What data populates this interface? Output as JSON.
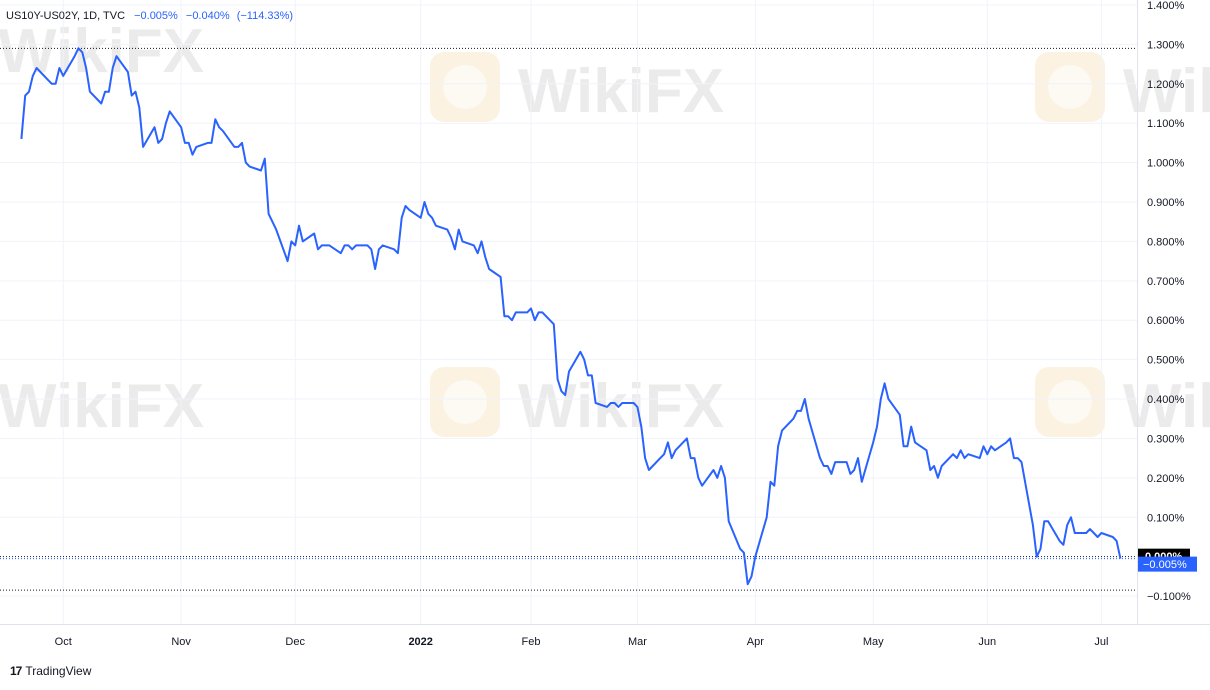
{
  "legend": {
    "symbol": "US10Y-US02Y, 1D, TVC",
    "change": "−0.005%",
    "change_abs": "−0.040%",
    "change_pct": "(−114.33%)"
  },
  "branding": {
    "name": "TradingView",
    "logo_icon": "tradingview-logo-icon",
    "watermark_text": "WikiFX"
  },
  "colors": {
    "line": "#2962ff",
    "last_label_bg": "#2962ff",
    "zero_label_bg": "#000000",
    "grid": "#f0f3fa",
    "text": "#131722"
  },
  "chart_data": {
    "type": "line",
    "title": "",
    "xlabel": "",
    "ylabel": "",
    "ylim": [
      -0.11,
      1.4
    ],
    "y_ticks": [
      -0.1,
      0.1,
      0.2,
      0.3,
      0.4,
      0.5,
      0.6,
      0.7,
      0.8,
      0.9,
      1.0,
      1.1,
      1.2,
      1.3,
      1.4
    ],
    "y_tick_labels": [
      "−0.100%",
      "0.100%",
      "0.200%",
      "0.300%",
      "0.400%",
      "0.500%",
      "0.600%",
      "0.700%",
      "0.800%",
      "0.900%",
      "1.000%",
      "1.100%",
      "1.200%",
      "1.300%",
      "1.400%"
    ],
    "x_ticks": [
      {
        "label": "Oct",
        "date": "2021-10-01",
        "bold": false
      },
      {
        "label": "Nov",
        "date": "2021-11-01",
        "bold": false
      },
      {
        "label": "Dec",
        "date": "2021-12-01",
        "bold": false
      },
      {
        "label": "2022",
        "date": "2022-01-03",
        "bold": true
      },
      {
        "label": "Feb",
        "date": "2022-02-01",
        "bold": false
      },
      {
        "label": "Mar",
        "date": "2022-03-01",
        "bold": false
      },
      {
        "label": "Apr",
        "date": "2022-04-01",
        "bold": false
      },
      {
        "label": "May",
        "date": "2022-05-02",
        "bold": false
      },
      {
        "label": "Jun",
        "date": "2022-06-01",
        "bold": false
      },
      {
        "label": "Jul",
        "date": "2022-07-01",
        "bold": false
      }
    ],
    "x_range": [
      "2021-09-17",
      "2022-07-08"
    ],
    "grid": true,
    "reference_lines": [
      {
        "value": 1.29,
        "style": "dotted"
      },
      {
        "value": 0.0,
        "style": "dotted",
        "label": "0.000%"
      },
      {
        "value": -0.085,
        "style": "dotted"
      }
    ],
    "last_value": -0.005,
    "last_value_label": "−0.005%",
    "zero_label": "0.000%",
    "series": [
      {
        "x": [
          "2021-09-20",
          "2021-09-21",
          "2021-09-22",
          "2021-09-23",
          "2021-09-24",
          "2021-09-27",
          "2021-09-28",
          "2021-09-29",
          "2021-09-30",
          "2021-10-01",
          "2021-10-04",
          "2021-10-05",
          "2021-10-06",
          "2021-10-07",
          "2021-10-08",
          "2021-10-11",
          "2021-10-12",
          "2021-10-13",
          "2021-10-14",
          "2021-10-15",
          "2021-10-18",
          "2021-10-19",
          "2021-10-20",
          "2021-10-21",
          "2021-10-22",
          "2021-10-25",
          "2021-10-26",
          "2021-10-27",
          "2021-10-28",
          "2021-10-29",
          "2021-11-01",
          "2021-11-02",
          "2021-11-03",
          "2021-11-04",
          "2021-11-05",
          "2021-11-08",
          "2021-11-09",
          "2021-11-10",
          "2021-11-11",
          "2021-11-12",
          "2021-11-15",
          "2021-11-16",
          "2021-11-17",
          "2021-11-18",
          "2021-11-19",
          "2021-11-22",
          "2021-11-23",
          "2021-11-24",
          "2021-11-25",
          "2021-11-26",
          "2021-11-29",
          "2021-11-30",
          "2021-12-01",
          "2021-12-02",
          "2021-12-03",
          "2021-12-06",
          "2021-12-07",
          "2021-12-08",
          "2021-12-09",
          "2021-12-10",
          "2021-12-13",
          "2021-12-14",
          "2021-12-15",
          "2021-12-16",
          "2021-12-17",
          "2021-12-20",
          "2021-12-21",
          "2021-12-22",
          "2021-12-23",
          "2021-12-24",
          "2021-12-27",
          "2021-12-28",
          "2021-12-29",
          "2021-12-30",
          "2021-12-31",
          "2022-01-03",
          "2022-01-04",
          "2022-01-05",
          "2022-01-06",
          "2022-01-07",
          "2022-01-10",
          "2022-01-11",
          "2022-01-12",
          "2022-01-13",
          "2022-01-14",
          "2022-01-17",
          "2022-01-18",
          "2022-01-19",
          "2022-01-20",
          "2022-01-21",
          "2022-01-24",
          "2022-01-25",
          "2022-01-26",
          "2022-01-27",
          "2022-01-28",
          "2022-01-31",
          "2022-02-01",
          "2022-02-02",
          "2022-02-03",
          "2022-02-04",
          "2022-02-07",
          "2022-02-08",
          "2022-02-09",
          "2022-02-10",
          "2022-02-11",
          "2022-02-14",
          "2022-02-15",
          "2022-02-16",
          "2022-02-17",
          "2022-02-18",
          "2022-02-21",
          "2022-02-22",
          "2022-02-23",
          "2022-02-24",
          "2022-02-25",
          "2022-02-28",
          "2022-03-01",
          "2022-03-02",
          "2022-03-03",
          "2022-03-04",
          "2022-03-07",
          "2022-03-08",
          "2022-03-09",
          "2022-03-10",
          "2022-03-11",
          "2022-03-14",
          "2022-03-15",
          "2022-03-16",
          "2022-03-17",
          "2022-03-18",
          "2022-03-21",
          "2022-03-22",
          "2022-03-23",
          "2022-03-24",
          "2022-03-25",
          "2022-03-28",
          "2022-03-29",
          "2022-03-30",
          "2022-03-31",
          "2022-04-01",
          "2022-04-04",
          "2022-04-05",
          "2022-04-06",
          "2022-04-07",
          "2022-04-08",
          "2022-04-11",
          "2022-04-12",
          "2022-04-13",
          "2022-04-14",
          "2022-04-15",
          "2022-04-18",
          "2022-04-19",
          "2022-04-20",
          "2022-04-21",
          "2022-04-22",
          "2022-04-25",
          "2022-04-26",
          "2022-04-27",
          "2022-04-28",
          "2022-04-29",
          "2022-05-02",
          "2022-05-03",
          "2022-05-04",
          "2022-05-05",
          "2022-05-06",
          "2022-05-09",
          "2022-05-10",
          "2022-05-11",
          "2022-05-12",
          "2022-05-13",
          "2022-05-16",
          "2022-05-17",
          "2022-05-18",
          "2022-05-19",
          "2022-05-20",
          "2022-05-23",
          "2022-05-24",
          "2022-05-25",
          "2022-05-26",
          "2022-05-27",
          "2022-05-30",
          "2022-05-31",
          "2022-06-01",
          "2022-06-02",
          "2022-06-03",
          "2022-06-06",
          "2022-06-07",
          "2022-06-08",
          "2022-06-09",
          "2022-06-10",
          "2022-06-13",
          "2022-06-14",
          "2022-06-15",
          "2022-06-16",
          "2022-06-17",
          "2022-06-20",
          "2022-06-21",
          "2022-06-22",
          "2022-06-23",
          "2022-06-24",
          "2022-06-27",
          "2022-06-28",
          "2022-06-29",
          "2022-06-30",
          "2022-07-01",
          "2022-07-04",
          "2022-07-05",
          "2022-07-06"
        ],
        "y": [
          1.06,
          1.17,
          1.18,
          1.22,
          1.24,
          1.21,
          1.2,
          1.2,
          1.24,
          1.22,
          1.27,
          1.29,
          1.28,
          1.24,
          1.18,
          1.15,
          1.18,
          1.18,
          1.24,
          1.27,
          1.23,
          1.17,
          1.18,
          1.14,
          1.04,
          1.09,
          1.05,
          1.06,
          1.1,
          1.13,
          1.09,
          1.05,
          1.05,
          1.02,
          1.04,
          1.05,
          1.05,
          1.11,
          1.09,
          1.08,
          1.04,
          1.04,
          1.05,
          1.0,
          0.99,
          0.98,
          1.01,
          0.87,
          0.85,
          0.83,
          0.75,
          0.8,
          0.79,
          0.84,
          0.8,
          0.82,
          0.78,
          0.79,
          0.79,
          0.79,
          0.77,
          0.79,
          0.79,
          0.78,
          0.79,
          0.79,
          0.78,
          0.73,
          0.78,
          0.79,
          0.78,
          0.77,
          0.86,
          0.89,
          0.88,
          0.86,
          0.9,
          0.87,
          0.86,
          0.84,
          0.83,
          0.81,
          0.78,
          0.83,
          0.8,
          0.79,
          0.77,
          0.8,
          0.76,
          0.73,
          0.71,
          0.61,
          0.61,
          0.6,
          0.62,
          0.62,
          0.63,
          0.6,
          0.62,
          0.62,
          0.59,
          0.45,
          0.42,
          0.41,
          0.47,
          0.52,
          0.5,
          0.46,
          0.46,
          0.39,
          0.38,
          0.39,
          0.39,
          0.38,
          0.39,
          0.39,
          0.38,
          0.33,
          0.25,
          0.22,
          0.25,
          0.26,
          0.29,
          0.25,
          0.27,
          0.3,
          0.25,
          0.25,
          0.2,
          0.18,
          0.22,
          0.2,
          0.23,
          0.2,
          0.09,
          0.02,
          0.01,
          -0.07,
          -0.05,
          0.0,
          0.1,
          0.19,
          0.18,
          0.28,
          0.32,
          0.35,
          0.37,
          0.37,
          0.4,
          0.35,
          0.25,
          0.23,
          0.23,
          0.21,
          0.24,
          0.24,
          0.21,
          0.22,
          0.25,
          0.19,
          0.29,
          0.33,
          0.4,
          0.44,
          0.4,
          0.36,
          0.28,
          0.28,
          0.33,
          0.29,
          0.27,
          0.22,
          0.23,
          0.2,
          0.23,
          0.26,
          0.25,
          0.27,
          0.25,
          0.26,
          0.25,
          0.28,
          0.26,
          0.28,
          0.27,
          0.29,
          0.3,
          0.25,
          0.25,
          0.24,
          0.08,
          0.0,
          0.02,
          0.09,
          0.09,
          0.04,
          0.03,
          0.08,
          0.1,
          0.06,
          0.06,
          0.07,
          0.06,
          0.05,
          0.06,
          0.05,
          0.04,
          -0.005
        ]
      }
    ]
  }
}
